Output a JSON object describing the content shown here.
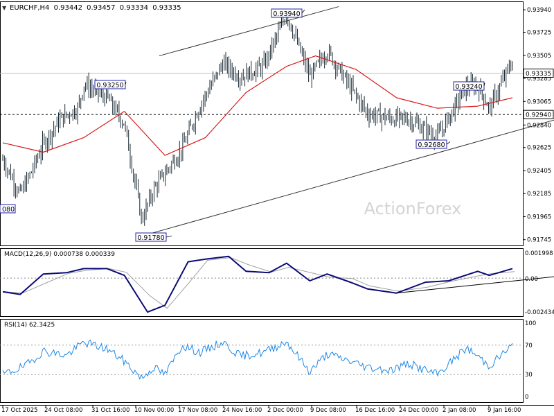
{
  "main_panel": {
    "header": {
      "symbol": "EURCHF,H4",
      "open": "0.93442",
      "high": "0.93457",
      "low": "0.93334",
      "close": "0.93335"
    },
    "watermark": "ActionForex",
    "y_ticks": [
      "0.93940",
      "0.93725",
      "0.93505",
      "0.93285",
      "0.93065",
      "0.92840",
      "0.92625",
      "0.92405",
      "0.92185",
      "0.91965",
      "0.91745"
    ],
    "current_price_label": "0.93335",
    "level_line_label": "0.92940",
    "callouts": [
      "0.93940",
      "0.93250",
      "0.93240",
      "0.92680",
      "0.91780"
    ],
    "left_clipped_label": "080"
  },
  "macd_panel": {
    "label": "MACD(12,26,9) 0.000738 0.000339",
    "y_ticks": [
      "0.001998",
      "0.00",
      "-0.002434"
    ]
  },
  "rsi_panel": {
    "label": "RSI(14) 62.3425",
    "y_ticks": [
      "100",
      "70",
      "30",
      "0"
    ]
  },
  "x_axis_labels": [
    "17 Oct 2025",
    "24 Oct 08:00",
    "31 Oct 16:00",
    "10 Nov 00:00",
    "17 Nov 08:00",
    "24 Nov 16:00",
    "2 Dec 00:00",
    "9 Dec 08:00",
    "16 Dec 16:00",
    "24 Dec 00:00",
    "2 Jan 08:00",
    "9 Jan 16:00"
  ],
  "colors": {
    "candles": "#1b2b35",
    "moving_average": "#d81818",
    "macd_line": "#0a0a78",
    "macd_signal": "#a0a0a0",
    "rsi_line": "#1e88e5",
    "channel_lines": "#333333",
    "callout_border": "#2222aa"
  },
  "chart_data": {
    "type": "candlestick",
    "symbol": "EURCHF",
    "timeframe": "H4",
    "ylim": [
      0.9169,
      0.9402
    ],
    "level": 0.9294,
    "current_price": 0.93335,
    "swing_points": [
      {
        "label": "0.91780",
        "x": "10 Nov",
        "y": 0.9178
      },
      {
        "label": "0.93250",
        "x": "31 Oct",
        "y": 0.9325
      },
      {
        "label": "0.93940",
        "x": "5 Dec",
        "y": 0.9394
      },
      {
        "label": "0.92680",
        "x": "31 Dec",
        "y": 0.9268
      },
      {
        "label": "0.93240",
        "x": "7 Jan",
        "y": 0.9324
      }
    ],
    "close_path": [
      {
        "x": "17 Oct",
        "y": 0.9251
      },
      {
        "x": "20 Oct",
        "y": 0.9218
      },
      {
        "x": "22 Oct",
        "y": 0.924
      },
      {
        "x": "24 Oct",
        "y": 0.9266
      },
      {
        "x": "27 Oct",
        "y": 0.929
      },
      {
        "x": "30 Oct",
        "y": 0.93
      },
      {
        "x": "31 Oct",
        "y": 0.9323
      },
      {
        "x": "4 Nov",
        "y": 0.931
      },
      {
        "x": "7 Nov",
        "y": 0.9285
      },
      {
        "x": "10 Nov",
        "y": 0.9193
      },
      {
        "x": "12 Nov",
        "y": 0.9222
      },
      {
        "x": "17 Nov",
        "y": 0.9262
      },
      {
        "x": "20 Nov",
        "y": 0.9302
      },
      {
        "x": "24 Nov",
        "y": 0.9343
      },
      {
        "x": "27 Nov",
        "y": 0.933
      },
      {
        "x": "1 Dec",
        "y": 0.934
      },
      {
        "x": "5 Dec",
        "y": 0.939
      },
      {
        "x": "9 Dec",
        "y": 0.933
      },
      {
        "x": "12 Dec",
        "y": 0.9355
      },
      {
        "x": "16 Dec",
        "y": 0.932
      },
      {
        "x": "19 Dec",
        "y": 0.9295
      },
      {
        "x": "23 Dec",
        "y": 0.929
      },
      {
        "x": "26 Dec",
        "y": 0.929
      },
      {
        "x": "31 Dec",
        "y": 0.9272
      },
      {
        "x": "5 Jan",
        "y": 0.932
      },
      {
        "x": "7 Jan",
        "y": 0.9322
      },
      {
        "x": "9 Jan",
        "y": 0.93
      },
      {
        "x": "13 Jan",
        "y": 0.9345
      }
    ],
    "moving_average_path": [
      {
        "x": "17 Oct",
        "y": 0.9267
      },
      {
        "x": "24 Oct",
        "y": 0.9258
      },
      {
        "x": "31 Oct",
        "y": 0.9272
      },
      {
        "x": "7 Nov",
        "y": 0.9297
      },
      {
        "x": "14 Nov",
        "y": 0.9255
      },
      {
        "x": "21 Nov",
        "y": 0.9272
      },
      {
        "x": "28 Nov",
        "y": 0.9315
      },
      {
        "x": "5 Dec",
        "y": 0.934
      },
      {
        "x": "10 Dec",
        "y": 0.935
      },
      {
        "x": "17 Dec",
        "y": 0.9337
      },
      {
        "x": "24 Dec",
        "y": 0.931
      },
      {
        "x": "31 Dec",
        "y": 0.93
      },
      {
        "x": "7 Jan",
        "y": 0.9302
      },
      {
        "x": "13 Jan",
        "y": 0.931
      }
    ],
    "trendlines": [
      {
        "name": "channel-upper",
        "from": {
          "x": "13 Nov",
          "y": 0.935
        },
        "to": {
          "x": "14 Dec",
          "y": 0.9397
        }
      },
      {
        "name": "channel-lower",
        "from": {
          "x": "10 Nov",
          "y": 0.9178
        },
        "to": {
          "x": "14 Jan",
          "y": 0.9286
        }
      }
    ],
    "macd": {
      "ylim": [
        -0.0028,
        0.0022
      ],
      "macd_path": [
        {
          "x": "17 Oct",
          "y": -0.001
        },
        {
          "x": "20 Oct",
          "y": -0.0012
        },
        {
          "x": "24 Oct",
          "y": 0.0003
        },
        {
          "x": "28 Oct",
          "y": 0.0004
        },
        {
          "x": "31 Oct",
          "y": 0.0007
        },
        {
          "x": "4 Nov",
          "y": 0.0007
        },
        {
          "x": "7 Nov",
          "y": 0.0002
        },
        {
          "x": "11 Nov",
          "y": -0.0025
        },
        {
          "x": "14 Nov",
          "y": -0.002
        },
        {
          "x": "18 Nov",
          "y": 0.0012
        },
        {
          "x": "21 Nov",
          "y": 0.0014
        },
        {
          "x": "25 Nov",
          "y": 0.0016
        },
        {
          "x": "28 Nov",
          "y": 0.0005
        },
        {
          "x": "2 Dec",
          "y": 0.0004
        },
        {
          "x": "5 Dec",
          "y": 0.0011
        },
        {
          "x": "9 Dec",
          "y": -0.0002
        },
        {
          "x": "12 Dec",
          "y": 0.0003
        },
        {
          "x": "16 Dec",
          "y": -0.0003
        },
        {
          "x": "19 Dec",
          "y": -0.0008
        },
        {
          "x": "24 Dec",
          "y": -0.0011
        },
        {
          "x": "29 Dec",
          "y": -0.0003
        },
        {
          "x": "2 Jan",
          "y": -0.0002
        },
        {
          "x": "7 Jan",
          "y": 0.0005
        },
        {
          "x": "9 Jan",
          "y": 0.0002
        },
        {
          "x": "13 Jan",
          "y": 0.0007
        }
      ],
      "trendline": {
        "from": {
          "x": "24 Dec",
          "y": -0.0011
        },
        "to": {
          "x": "14 Jan",
          "y": 0.0001
        }
      }
    },
    "rsi": {
      "ylim": [
        0,
        100
      ],
      "levels": [
        70,
        30
      ],
      "rsi_path": [
        {
          "x": "17 Oct",
          "y": 30
        },
        {
          "x": "21 Oct",
          "y": 42
        },
        {
          "x": "24 Oct",
          "y": 62
        },
        {
          "x": "28 Oct",
          "y": 56
        },
        {
          "x": "31 Oct",
          "y": 74
        },
        {
          "x": "4 Nov",
          "y": 65
        },
        {
          "x": "7 Nov",
          "y": 48
        },
        {
          "x": "10 Nov",
          "y": 25
        },
        {
          "x": "12 Nov",
          "y": 40
        },
        {
          "x": "14 Nov",
          "y": 30
        },
        {
          "x": "17 Nov",
          "y": 70
        },
        {
          "x": "20 Nov",
          "y": 60
        },
        {
          "x": "24 Nov",
          "y": 74
        },
        {
          "x": "27 Nov",
          "y": 55
        },
        {
          "x": "1 Dec",
          "y": 60
        },
        {
          "x": "5 Dec",
          "y": 75
        },
        {
          "x": "9 Dec",
          "y": 34
        },
        {
          "x": "12 Dec",
          "y": 58
        },
        {
          "x": "16 Dec",
          "y": 48
        },
        {
          "x": "19 Dec",
          "y": 40
        },
        {
          "x": "23 Dec",
          "y": 36
        },
        {
          "x": "26 Dec",
          "y": 45
        },
        {
          "x": "31 Dec",
          "y": 30
        },
        {
          "x": "5 Jan",
          "y": 66
        },
        {
          "x": "7 Jan",
          "y": 55
        },
        {
          "x": "9 Jan",
          "y": 42
        },
        {
          "x": "13 Jan",
          "y": 70
        }
      ]
    }
  }
}
